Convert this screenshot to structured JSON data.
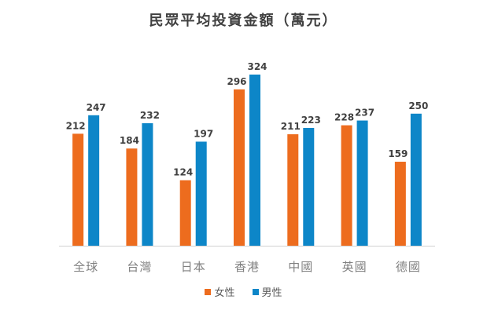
{
  "chart_data": {
    "type": "bar",
    "title": "民眾平均投資金額（萬元）",
    "xlabel": "",
    "ylabel": "",
    "categories": [
      "全球",
      "台灣",
      "日本",
      "香港",
      "中國",
      "英國",
      "德國"
    ],
    "series": [
      {
        "name": "女性",
        "color": "#ED6C1E",
        "values": [
          212,
          184,
          124,
          296,
          211,
          228,
          159
        ]
      },
      {
        "name": "男性",
        "color": "#0D86C8",
        "values": [
          247,
          232,
          197,
          324,
          223,
          237,
          250
        ]
      }
    ],
    "ylim": [
      0,
      340
    ],
    "grid": false,
    "data_labels": true,
    "legend": "bottom-center"
  }
}
